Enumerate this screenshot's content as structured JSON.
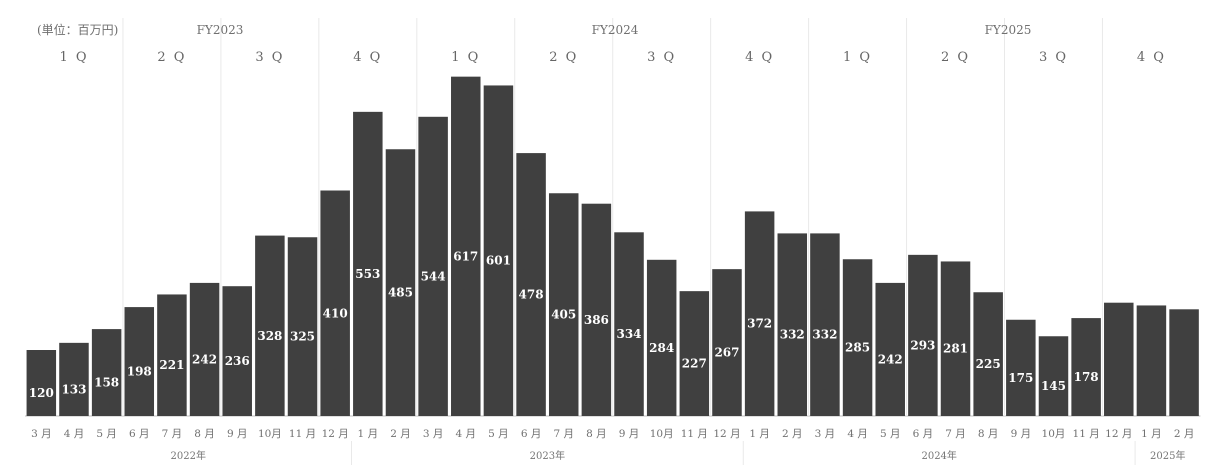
{
  "chart_data": {
    "type": "bar",
    "title": "",
    "unit_label": "(単位：百万円)",
    "fiscal_years": [
      "FY2023",
      "FY2024",
      "FY2025"
    ],
    "quarters": [
      "1 Q",
      "2 Q",
      "3 Q",
      "4 Q",
      "1 Q",
      "2 Q",
      "3 Q",
      "4 Q",
      "1 Q",
      "2 Q",
      "3 Q",
      "4 Q"
    ],
    "categories": [
      "3 月",
      "4 月",
      "5 月",
      "6 月",
      "7 月",
      "8 月",
      "9 月",
      "10月",
      "11 月",
      "12 月",
      "1 月",
      "2 月",
      "3 月",
      "4 月",
      "5 月",
      "6 月",
      "7 月",
      "8 月",
      "9 月",
      "10月",
      "11 月",
      "12 月",
      "1 月",
      "2 月",
      "3 月",
      "4 月",
      "5 月",
      "6 月",
      "7 月",
      "8 月",
      "9 月",
      "10月",
      "11 月",
      "12 月",
      "1 月",
      "2 月"
    ],
    "values": [
      120,
      133,
      158,
      198,
      221,
      242,
      236,
      328,
      325,
      410,
      553,
      485,
      544,
      617,
      601,
      478,
      405,
      386,
      334,
      284,
      227,
      267,
      372,
      332,
      332,
      285,
      242,
      293,
      281,
      225,
      175,
      145,
      178,
      206,
      201,
      194
    ],
    "show_value_labels": [
      true,
      true,
      true,
      true,
      true,
      true,
      true,
      true,
      true,
      true,
      true,
      true,
      true,
      true,
      true,
      true,
      true,
      true,
      true,
      true,
      true,
      true,
      true,
      true,
      true,
      true,
      true,
      true,
      true,
      true,
      true,
      true,
      true,
      false,
      false,
      false
    ],
    "years": [
      "2022年",
      "2023年",
      "2024年",
      "2025年"
    ],
    "ylim": [
      0,
      620
    ],
    "grid": true,
    "colors": {
      "bar": "#404040",
      "value_label": "#ffffff",
      "text": "#707070",
      "grid": "#e9e9e9"
    }
  }
}
